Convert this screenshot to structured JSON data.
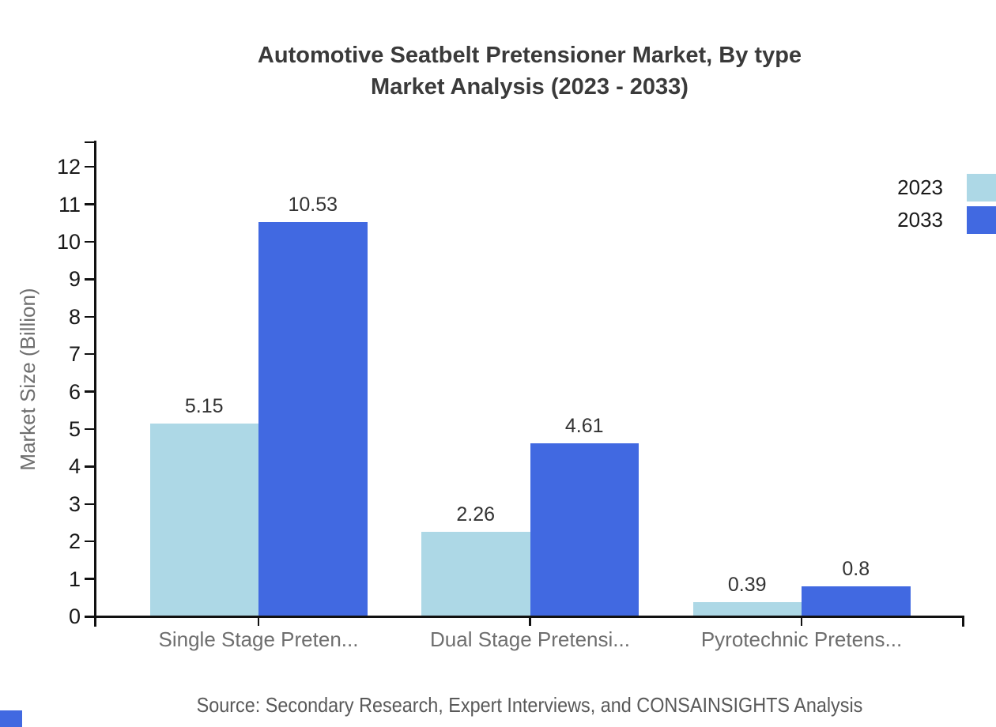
{
  "title": {
    "line1": "Automotive Seatbelt Pretensioner Market, By type",
    "line2": "Market Analysis (2023 - 2033)"
  },
  "y_axis": {
    "label": "Market Size (Billion)"
  },
  "legend": {
    "items": [
      {
        "label": "2023",
        "color": "#ADD8E6"
      },
      {
        "label": "2033",
        "color": "#4169E1"
      }
    ]
  },
  "source": "Source: Secondary Research, Expert Interviews, and CONSAINSIGHTS Analysis",
  "chart_data": {
    "type": "bar",
    "title": "Automotive Seatbelt Pretensioner Market, By type Market Analysis (2023 - 2033)",
    "categories": [
      "Single Stage Preten...",
      "Dual Stage Pretensi...",
      "Pyrotechnic Pretens..."
    ],
    "series": [
      {
        "name": "2023",
        "color": "#ADD8E6",
        "values": [
          5.15,
          2.26,
          0.39
        ]
      },
      {
        "name": "2033",
        "color": "#4169E1",
        "values": [
          10.53,
          4.61,
          0.8
        ]
      }
    ],
    "xlabel": "",
    "ylabel": "Market Size (Billion)",
    "ylim": [
      0,
      12
    ],
    "ytick_step": 1,
    "grid": false,
    "legend_position": "top-right",
    "bar_value_labels_shown": true
  },
  "accent_colors": {
    "bar_2023": "#ADD8E6",
    "bar_2033": "#4169E1",
    "axis": "#111111",
    "category_text": "#6e6e6e",
    "source_text": "#595959"
  }
}
